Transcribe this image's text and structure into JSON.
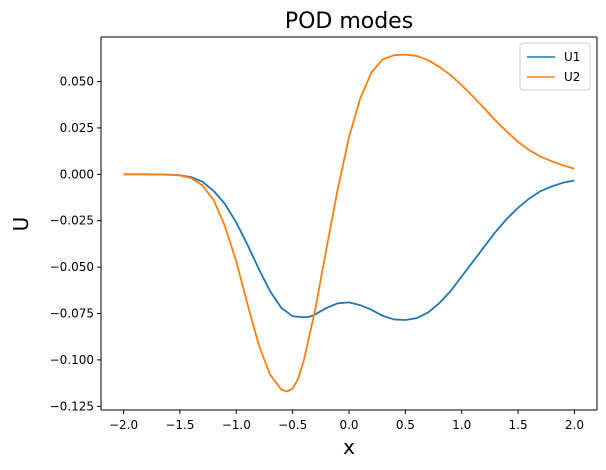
{
  "chart_data": {
    "type": "line",
    "title": "POD modes",
    "xlabel": "x",
    "ylabel": "U",
    "xlim": [
      -2.2,
      2.2
    ],
    "ylim": [
      -0.127,
      0.074
    ],
    "xticks": [
      -2.0,
      -1.5,
      -1.0,
      -0.5,
      0.0,
      0.5,
      1.0,
      1.5,
      2.0
    ],
    "xtick_labels": [
      "−2.0",
      "−1.5",
      "−1.0",
      "−0.5",
      "0.0",
      "0.5",
      "1.0",
      "1.5",
      "2.0"
    ],
    "yticks": [
      -0.125,
      -0.1,
      -0.075,
      -0.05,
      -0.025,
      0.0,
      0.025,
      0.05
    ],
    "ytick_labels": [
      "−0.125",
      "−0.100",
      "−0.075",
      "−0.050",
      "−0.025",
      "0.000",
      "0.025",
      "0.050"
    ],
    "grid": false,
    "legend_position": "top-right",
    "series": [
      {
        "name": "U1",
        "color": "#1f77b4",
        "x": [
          -2.0,
          -1.8,
          -1.6,
          -1.5,
          -1.4,
          -1.3,
          -1.2,
          -1.1,
          -1.0,
          -0.9,
          -0.8,
          -0.7,
          -0.6,
          -0.5,
          -0.4,
          -0.35,
          -0.3,
          -0.2,
          -0.1,
          0.0,
          0.1,
          0.2,
          0.3,
          0.4,
          0.5,
          0.6,
          0.7,
          0.8,
          0.9,
          1.0,
          1.1,
          1.2,
          1.3,
          1.4,
          1.5,
          1.6,
          1.7,
          1.8,
          1.9,
          2.0
        ],
        "y": [
          0.0,
          0.0,
          -0.0002,
          -0.0005,
          -0.0015,
          -0.004,
          -0.009,
          -0.016,
          -0.026,
          -0.038,
          -0.051,
          -0.063,
          -0.072,
          -0.0765,
          -0.077,
          -0.0768,
          -0.0755,
          -0.072,
          -0.0695,
          -0.069,
          -0.0705,
          -0.073,
          -0.0763,
          -0.0782,
          -0.0785,
          -0.0775,
          -0.0745,
          -0.0695,
          -0.063,
          -0.055,
          -0.047,
          -0.039,
          -0.031,
          -0.024,
          -0.018,
          -0.013,
          -0.009,
          -0.0065,
          -0.0045,
          -0.0033
        ]
      },
      {
        "name": "U2",
        "color": "#ff7f0e",
        "x": [
          -2.0,
          -1.8,
          -1.6,
          -1.5,
          -1.4,
          -1.3,
          -1.2,
          -1.1,
          -1.0,
          -0.9,
          -0.8,
          -0.7,
          -0.6,
          -0.55,
          -0.5,
          -0.45,
          -0.4,
          -0.3,
          -0.2,
          -0.1,
          0.0,
          0.1,
          0.2,
          0.3,
          0.4,
          0.5,
          0.6,
          0.7,
          0.8,
          0.9,
          1.0,
          1.1,
          1.2,
          1.3,
          1.4,
          1.5,
          1.6,
          1.7,
          1.8,
          1.9,
          2.0
        ],
        "y": [
          0.0,
          0.0,
          -0.0002,
          -0.0006,
          -0.002,
          -0.006,
          -0.014,
          -0.028,
          -0.047,
          -0.07,
          -0.092,
          -0.108,
          -0.116,
          -0.117,
          -0.1155,
          -0.11,
          -0.1,
          -0.073,
          -0.04,
          -0.008,
          0.02,
          0.041,
          0.055,
          0.062,
          0.0642,
          0.0645,
          0.0638,
          0.0615,
          0.058,
          0.0535,
          0.048,
          0.042,
          0.0355,
          0.029,
          0.023,
          0.0175,
          0.013,
          0.0095,
          0.007,
          0.0048,
          0.003
        ]
      }
    ]
  }
}
